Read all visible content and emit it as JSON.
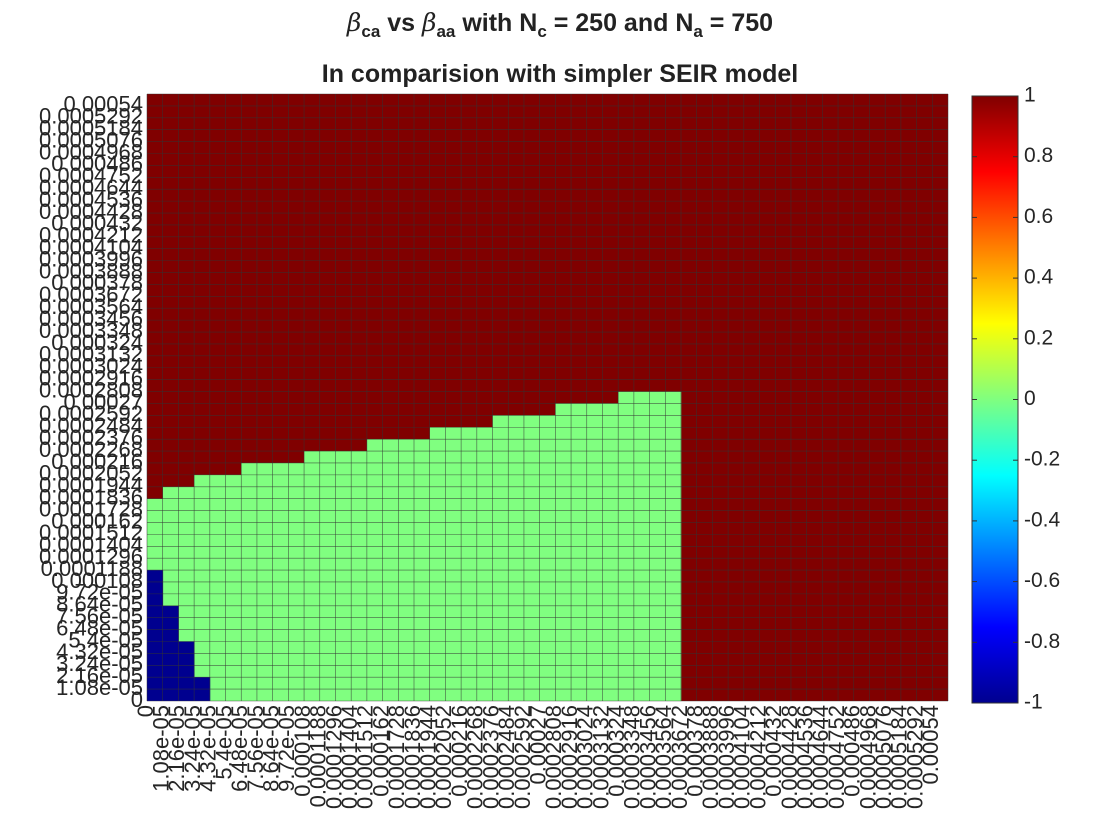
{
  "chart_data": {
    "type": "heatmap",
    "title": {
      "greek": "β",
      "sub_ca": "ca",
      "vs": " vs ",
      "sub_aa": "aa",
      "with": " with N",
      "sub_c": "c",
      "eq1": " = 250 and N",
      "sub_a": "a",
      "eq2": " = 750"
    },
    "subtitle": "In comparision with simpler SEIR model",
    "xlabel": "",
    "ylabel": "",
    "grid_size": 51,
    "x_tick_labels": [
      "0",
      "1.08e-05",
      "2.16e-05",
      "3.24e-05",
      "4.32e-05",
      "5.4e-05",
      "6.48e-05",
      "7.56e-05",
      "8.64e-05",
      "9.72e-05",
      "0.000108",
      "0.0001188",
      "0.0001296",
      "0.0001404",
      "0.0001512",
      "0.000162",
      "0.0001728",
      "0.0001836",
      "0.0001944",
      "0.0002052",
      "0.000216",
      "0.0002268",
      "0.0002376",
      "0.0002484",
      "0.0002592",
      "0.00027",
      "0.0002808",
      "0.0002916",
      "0.0003024",
      "0.0003132",
      "0.000324",
      "0.0003348",
      "0.0003456",
      "0.0003564",
      "0.0003672",
      "0.000378",
      "0.0003888",
      "0.0003996",
      "0.0004104",
      "0.0004212",
      "0.000432",
      "0.0004428",
      "0.0004536",
      "0.0004644",
      "0.0004752",
      "0.000486",
      "0.0004968",
      "0.0005076",
      "0.0005184",
      "0.0005292",
      "0.00054"
    ],
    "y_tick_labels": [
      "0",
      "1.08e-05",
      "2.16e-05",
      "3.24e-05",
      "4.32e-05",
      "5.4e-05",
      "6.48e-05",
      "7.56e-05",
      "8.64e-05",
      "9.72e-05",
      "0.000108",
      "0.0001188",
      "0.0001296",
      "0.0001404",
      "0.0001512",
      "0.000162",
      "0.0001728",
      "0.0001836",
      "0.0001944",
      "0.0002052",
      "0.000216",
      "0.0002268",
      "0.0002376",
      "0.0002484",
      "0.0002592",
      "0.00027",
      "0.0002808",
      "0.0002916",
      "0.0003024",
      "0.0003132",
      "0.000324",
      "0.0003348",
      "0.0003456",
      "0.0003564",
      "0.0003672",
      "0.000378",
      "0.0003888",
      "0.0003996",
      "0.0004104",
      "0.0004212",
      "0.000432",
      "0.0004428",
      "0.0004536",
      "0.0004644",
      "0.0004752",
      "0.000486",
      "0.0004968",
      "0.0005076",
      "0.0005184",
      "0.0005292",
      "0.00054"
    ],
    "values_legend": {
      "minus_one": -1,
      "zero": 0,
      "one": 1
    },
    "green_upper_row_by_column": [
      16,
      17,
      17,
      18,
      18,
      18,
      19,
      19,
      19,
      19,
      20,
      20,
      20,
      20,
      21,
      21,
      21,
      21,
      22,
      22,
      22,
      22,
      23,
      23,
      23,
      23,
      24,
      24,
      24,
      24,
      25,
      25,
      25,
      25
    ],
    "navy_upper_row_by_column": [
      10,
      7,
      4,
      1
    ],
    "colors": {
      "minus_one": "#00008f",
      "zero": "#80ff80",
      "one": "#800000",
      "grid": "#333333"
    },
    "colorbar": {
      "min": -1,
      "max": 1,
      "ticks": [
        1,
        0.8,
        0.6,
        0.4,
        0.2,
        0,
        -0.2,
        -0.4,
        -0.6,
        -0.8,
        -1
      ],
      "tick_labels": [
        "1",
        "0.8",
        "0.6",
        "0.4",
        "0.2",
        "0",
        "-0.2",
        "-0.4",
        "-0.6",
        "-0.8",
        "-1"
      ]
    }
  }
}
